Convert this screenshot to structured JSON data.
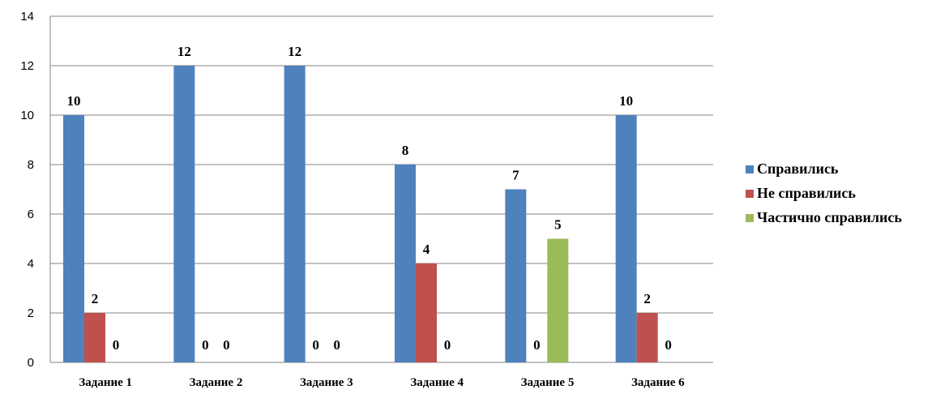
{
  "chart_data": {
    "type": "bar",
    "categories": [
      "Задание 1",
      "Задание 2",
      "Задание 3",
      "Задание 4",
      "Задание 5",
      "Задание 6"
    ],
    "series": [
      {
        "name": "Справились",
        "color": "#4F81BD",
        "values": [
          10,
          12,
          12,
          8,
          7,
          10
        ]
      },
      {
        "name": "Не справились",
        "color": "#C0504D",
        "values": [
          2,
          0,
          0,
          4,
          0,
          2
        ]
      },
      {
        "name": "Частично справились",
        "color": "#9BBB59",
        "values": [
          0,
          0,
          0,
          0,
          5,
          0
        ]
      }
    ],
    "y_ticks": [
      "0",
      "2",
      "4",
      "6",
      "8",
      "10",
      "12",
      "14"
    ],
    "ylim": [
      0,
      14
    ],
    "grid": true,
    "legend_position": "right",
    "data_labels": true
  }
}
